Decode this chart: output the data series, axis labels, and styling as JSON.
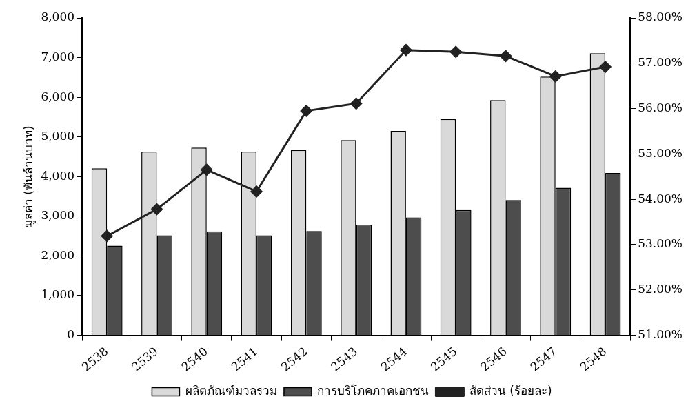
{
  "chart_data": {
    "type": "bar",
    "ylabel": "มูลค่า (พันล้านบาท)",
    "categories": [
      "2538",
      "2539",
      "2540",
      "2541",
      "2542",
      "2543",
      "2544",
      "2545",
      "2546",
      "2547",
      "2548"
    ],
    "series": [
      {
        "name": "ผลิตภัณฑ์มวลรวม",
        "color": "#d9d9d9",
        "values": [
          4210,
          4630,
          4730,
          4630,
          4670,
          4920,
          5150,
          5450,
          5930,
          6520,
          7110
        ]
      },
      {
        "name": "การบริโภคภาคเอกชน",
        "color": "#4d4d4d",
        "values": [
          2260,
          2520,
          2620,
          2520,
          2630,
          2790,
          2970,
          3160,
          3410,
          3720,
          4090
        ]
      },
      {
        "name": "สัดส่วน (ร้อยละ)",
        "type": "line",
        "axis": "y2",
        "color": "#222222",
        "values": [
          53.19,
          53.78,
          54.65,
          54.17,
          55.95,
          56.11,
          57.29,
          57.25,
          57.16,
          56.71,
          56.92
        ]
      }
    ],
    "ylim": [
      0,
      8000
    ],
    "yticks": [
      0,
      {
        "value": 1000,
        "label": "1,000"
      },
      {
        "value": 2000,
        "label": "2,000"
      },
      {
        "value": 3000,
        "label": "3,000"
      },
      {
        "value": 4000,
        "label": "4,000"
      },
      {
        "value": 5000,
        "label": "5,000"
      },
      {
        "value": 6000,
        "label": "6,000"
      },
      {
        "value": 7000,
        "label": "7,000"
      },
      {
        "value": 8000,
        "label": "8,000"
      }
    ],
    "y2lim": [
      51,
      58
    ],
    "y2ticks": [
      {
        "value": 51,
        "label": "51.00%"
      },
      {
        "value": 52,
        "label": "52.00%"
      },
      {
        "value": 53,
        "label": "53.00%"
      },
      {
        "value": 54,
        "label": "54.00%"
      },
      {
        "value": 55,
        "label": "55.00%"
      },
      {
        "value": 56,
        "label": "56.00%"
      },
      {
        "value": 57,
        "label": "57.00%"
      },
      {
        "value": 58,
        "label": "58.00%"
      }
    ],
    "marker": "diamond",
    "line_style": "solid",
    "grid": false,
    "legend": "bottom"
  }
}
